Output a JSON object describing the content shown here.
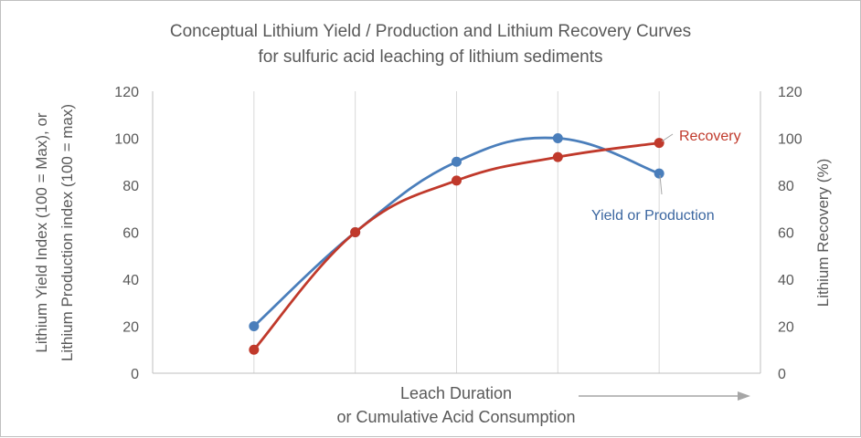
{
  "chart_data": {
    "type": "line",
    "title": "Conceptual Lithium Yield / Production and Lithium Recovery Curves",
    "subtitle": "for sulfuric acid leaching of lithium sediments",
    "ylabel": [
      "Lithium Yield Index  (100 = Max), or",
      "Lithium Production index (100 = max)"
    ],
    "y2label": "Lithium Recovery (%)",
    "xlabel": [
      "Leach Duration",
      "or Cumulative Acid Consumption"
    ],
    "ylim": [
      0,
      120
    ],
    "y2lim": [
      0,
      120
    ],
    "yticks": [
      "0",
      "20",
      "40",
      "60",
      "80",
      "100",
      "120"
    ],
    "y2ticks": [
      "0",
      "20",
      "40",
      "60",
      "80",
      "100",
      "120"
    ],
    "x": [
      1,
      2,
      3,
      4,
      5
    ],
    "xlim": [
      0,
      6
    ],
    "grid": {
      "vertical": true,
      "horizontal": false
    },
    "series": [
      {
        "name": "Yield or Production",
        "axis": "left",
        "color": "#4a7ebb",
        "values": [
          20,
          60,
          90,
          100,
          85
        ]
      },
      {
        "name": "Recovery",
        "axis": "right",
        "color": "#c0392b",
        "values": [
          10,
          60,
          82,
          92,
          98
        ]
      }
    ],
    "annotations": [
      {
        "text": "Recovery",
        "color": "#c0392b"
      },
      {
        "text": "Yield or Production",
        "color": "#3b66a0"
      }
    ],
    "arrow_color": "#a6a6a6"
  }
}
